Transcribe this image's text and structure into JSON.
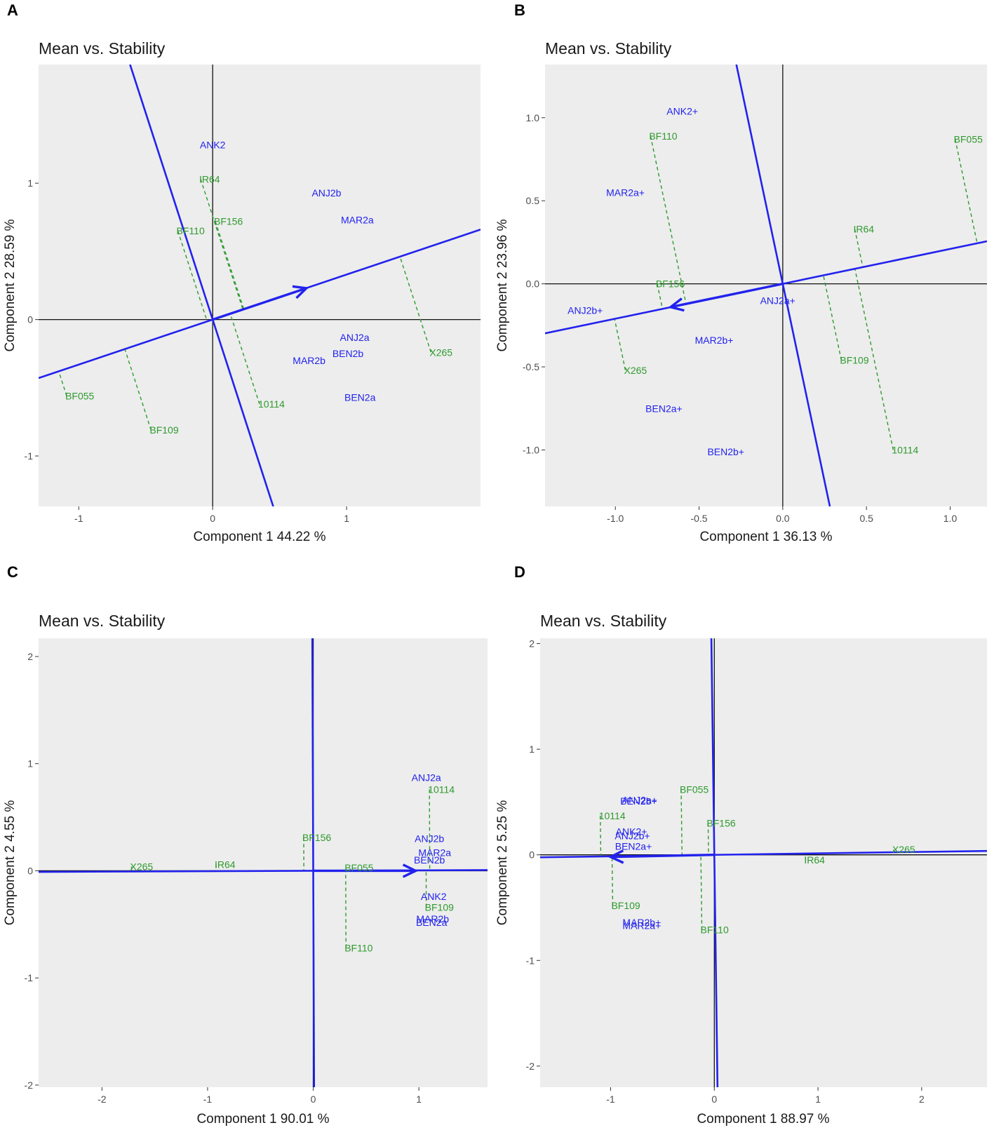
{
  "chart_data": [
    {
      "panel": "A",
      "type": "scatter",
      "title": "Mean vs. Stability",
      "xlabel": "Component 1 44.22 %",
      "ylabel": "Component 2 28.59 %",
      "xlim": [
        -1.3,
        2.0
      ],
      "ylim": [
        -1.37,
        1.87
      ],
      "xticks": [
        -1,
        0,
        1
      ],
      "xtick_labels": [
        "-1",
        "0",
        "1"
      ],
      "yticks": [
        -1,
        0,
        1
      ],
      "ytick_labels": [
        "-1",
        "0",
        "1"
      ],
      "aec_slope": 0.33,
      "arrow_tip": [
        0.7,
        0.23
      ],
      "environments": [
        {
          "label": "ANK2",
          "x": 0.0,
          "y": 1.28
        },
        {
          "label": "ANJ2b",
          "x": 0.85,
          "y": 0.93
        },
        {
          "label": "MAR2a",
          "x": 1.08,
          "y": 0.73
        },
        {
          "label": "ANJ2a",
          "x": 1.06,
          "y": -0.13
        },
        {
          "label": "BEN2b",
          "x": 1.01,
          "y": -0.25
        },
        {
          "label": "MAR2b",
          "x": 0.72,
          "y": -0.3
        },
        {
          "label": "BEN2a",
          "x": 1.1,
          "y": -0.57
        }
      ],
      "genotypes": [
        {
          "label": "IR64",
          "x": -0.09,
          "y": 1.03
        },
        {
          "label": "BF156",
          "x": 0.02,
          "y": 0.72
        },
        {
          "label": "BF110",
          "x": -0.26,
          "y": 0.65
        },
        {
          "label": "X265",
          "x": 1.63,
          "y": -0.24
        },
        {
          "label": "10114",
          "x": 0.35,
          "y": -0.62
        },
        {
          "label": "BF055",
          "x": -1.09,
          "y": -0.56
        },
        {
          "label": "BF109",
          "x": -0.46,
          "y": -0.81
        }
      ]
    },
    {
      "panel": "B",
      "type": "scatter",
      "title": "Mean vs. Stability",
      "xlabel": "Component 1 36.13 %",
      "ylabel": "Component 2 23.96 %",
      "xlim": [
        -1.42,
        1.22
      ],
      "ylim": [
        -1.34,
        1.32
      ],
      "xticks": [
        -1.0,
        -0.5,
        0.0,
        0.5,
        1.0
      ],
      "xtick_labels": [
        "-1.0",
        "-0.5",
        "0.0",
        "0.5",
        "1.0"
      ],
      "yticks": [
        -1.0,
        -0.5,
        0.0,
        0.5,
        1.0
      ],
      "ytick_labels": [
        "-1.0",
        "-0.5",
        "0.0",
        "0.5",
        "1.0"
      ],
      "aec_slope": 0.21,
      "arrow_tip": [
        -0.67,
        -0.14
      ],
      "environments": [
        {
          "label": "ANK2+",
          "x": -0.6,
          "y": 1.04
        },
        {
          "label": "MAR2a+",
          "x": -0.94,
          "y": 0.55
        },
        {
          "label": "ANJ2a+",
          "x": -0.03,
          "y": -0.1
        },
        {
          "label": "ANJ2b+",
          "x": -1.18,
          "y": -0.16
        },
        {
          "label": "MAR2b+",
          "x": -0.41,
          "y": -0.34
        },
        {
          "label": "BEN2a+",
          "x": -0.71,
          "y": -0.75
        },
        {
          "label": "BEN2b+",
          "x": -0.34,
          "y": -1.01
        }
      ],
      "genotypes": [
        {
          "label": "BF110",
          "x": -0.79,
          "y": 0.89
        },
        {
          "label": "BF055",
          "x": 1.03,
          "y": 0.87
        },
        {
          "label": "IR64",
          "x": 0.43,
          "y": 0.33
        },
        {
          "label": "BF156",
          "x": -0.75,
          "y": 0.0
        },
        {
          "label": "X265",
          "x": -0.94,
          "y": -0.52
        },
        {
          "label": "BF109",
          "x": 0.35,
          "y": -0.46
        },
        {
          "label": "10114",
          "x": 0.66,
          "y": -1.0
        }
      ]
    },
    {
      "panel": "C",
      "type": "scatter",
      "title": "Mean vs. Stability",
      "xlabel": "Component 1 90.01 %",
      "ylabel": "Component 2 4.55 %",
      "xlim": [
        -2.6,
        1.65
      ],
      "ylim": [
        -2.02,
        2.17
      ],
      "xticks": [
        -2,
        -1,
        0,
        1
      ],
      "xtick_labels": [
        "-2",
        "-1",
        "0",
        "1"
      ],
      "yticks": [
        -2,
        -1,
        0,
        1,
        2
      ],
      "ytick_labels": [
        "-2",
        "-1",
        "0",
        "1",
        "2"
      ],
      "aec_slope": 0.004,
      "arrow_tip": [
        0.97,
        0.0
      ],
      "environments": [
        {
          "label": "ANJ2a",
          "x": 1.07,
          "y": 0.87
        },
        {
          "label": "ANJ2b",
          "x": 1.1,
          "y": 0.3
        },
        {
          "label": "MAR2a",
          "x": 1.15,
          "y": 0.17
        },
        {
          "label": "BEN2b",
          "x": 1.1,
          "y": 0.1
        },
        {
          "label": "ANK2",
          "x": 1.14,
          "y": -0.24
        },
        {
          "label": "MAR2b",
          "x": 1.13,
          "y": -0.45
        },
        {
          "label": "BEN2a",
          "x": 1.12,
          "y": -0.48
        }
      ],
      "genotypes": [
        {
          "label": "10114",
          "x": 1.1,
          "y": 0.76
        },
        {
          "label": "BF156",
          "x": -0.09,
          "y": 0.31
        },
        {
          "label": "X265",
          "x": -1.72,
          "y": 0.04
        },
        {
          "label": "IR64",
          "x": -0.92,
          "y": 0.06
        },
        {
          "label": "BF055",
          "x": 0.31,
          "y": 0.03
        },
        {
          "label": "BF109",
          "x": 1.07,
          "y": -0.34
        },
        {
          "label": "BF110",
          "x": 0.31,
          "y": -0.72
        }
      ]
    },
    {
      "panel": "D",
      "type": "scatter",
      "title": "Mean vs. Stability",
      "xlabel": "Component 1 88.97 %",
      "ylabel": "Component 2 5.25 %",
      "xlim": [
        -1.68,
        2.63
      ],
      "ylim": [
        -2.2,
        2.05
      ],
      "xticks": [
        -1,
        0,
        1,
        2
      ],
      "xtick_labels": [
        "-1",
        "0",
        "1",
        "2"
      ],
      "yticks": [
        -2,
        -1,
        0,
        1,
        2
      ],
      "ytick_labels": [
        "-2",
        "-1",
        "0",
        "1",
        "2"
      ],
      "aec_slope": 0.014,
      "arrow_tip": [
        -1.0,
        -0.02
      ],
      "environments": [
        {
          "label": "ANJ2a+",
          "x": -0.72,
          "y": 0.52
        },
        {
          "label": "BEN2b+",
          "x": -0.73,
          "y": 0.51
        },
        {
          "label": "ANK2+",
          "x": -0.8,
          "y": 0.22
        },
        {
          "label": "ANJ2b+",
          "x": -0.79,
          "y": 0.18
        },
        {
          "label": "BEN2a+",
          "x": -0.78,
          "y": 0.08
        },
        {
          "label": "MAR2b+",
          "x": -0.7,
          "y": -0.64
        },
        {
          "label": "MAR2a+",
          "x": -0.7,
          "y": -0.67
        }
      ],
      "genotypes": [
        {
          "label": "BF055",
          "x": -0.32,
          "y": 0.62
        },
        {
          "label": "10114",
          "x": -1.1,
          "y": 0.37
        },
        {
          "label": "BF156",
          "x": -0.06,
          "y": 0.3
        },
        {
          "label": "X265",
          "x": 1.73,
          "y": 0.05
        },
        {
          "label": "IR64",
          "x": 0.88,
          "y": -0.05
        },
        {
          "label": "BF109",
          "x": -0.98,
          "y": -0.48
        },
        {
          "label": "BF110",
          "x": -0.12,
          "y": -0.71
        }
      ]
    }
  ],
  "colors": {
    "environment": "#2222ee",
    "genotype": "#2e9a2e",
    "panel_bg": "#ededed",
    "axis_line": "#111111",
    "tick_text": "#4d4d4d"
  }
}
